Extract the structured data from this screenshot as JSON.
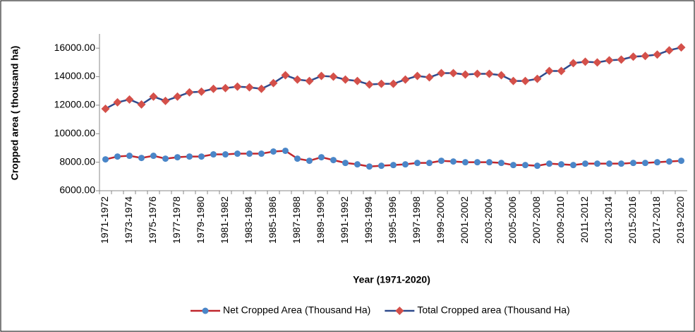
{
  "chart_data": {
    "type": "line",
    "xlabel": "Year (1971-2020)",
    "ylabel": "Cropped area ( thousand  ha)",
    "categories": [
      "1971-1972",
      null,
      "1973-1974",
      null,
      "1975-1976",
      null,
      "1977-1978",
      null,
      "1979-1980",
      null,
      "1981-1982",
      null,
      "1983-1984",
      null,
      "1985-1986",
      null,
      "1987-1988",
      null,
      "1989-1990",
      null,
      "1991-1992",
      null,
      "1993-1994",
      null,
      "1995-1996",
      null,
      "1997-1998",
      null,
      "1999-2000",
      null,
      "2001-2002",
      null,
      "2003-2004",
      null,
      "2005-2006",
      null,
      "2007-2008",
      null,
      "2009-2010",
      null,
      "2011-2012",
      null,
      "2013-2014",
      null,
      "2015-2016",
      null,
      "2017-2018",
      null,
      "2019-2020"
    ],
    "series": [
      {
        "name": "Net Cropped Area (Thousand Ha)",
        "color": "#c0272d",
        "marker_color": "#4a86c8",
        "marker": "circle",
        "values": [
          8200,
          8400,
          8450,
          8300,
          8450,
          8250,
          8350,
          8400,
          8400,
          8550,
          8550,
          8600,
          8600,
          8600,
          8750,
          8800,
          8250,
          8100,
          8350,
          8150,
          7950,
          7850,
          7700,
          7750,
          7800,
          7850,
          7950,
          7950,
          8100,
          8050,
          8000,
          8000,
          8000,
          7950,
          7800,
          7800,
          7750,
          7900,
          7850,
          7800,
          7900,
          7900,
          7900,
          7900,
          7950,
          7950,
          8000,
          8050,
          8100
        ]
      },
      {
        "name": "Total Cropped area (Thousand Ha)",
        "color": "#2e4a8c",
        "marker_color": "#d4504a",
        "marker": "diamond",
        "values": [
          11750,
          12200,
          12400,
          12050,
          12600,
          12300,
          12600,
          12900,
          12950,
          13150,
          13200,
          13300,
          13250,
          13150,
          13550,
          14100,
          13800,
          13700,
          14050,
          14000,
          13800,
          13700,
          13450,
          13500,
          13500,
          13800,
          14050,
          13950,
          14250,
          14250,
          14150,
          14200,
          14200,
          14100,
          13700,
          13700,
          13850,
          14400,
          14400,
          14950,
          15050,
          15000,
          15150,
          15200,
          15400,
          15450,
          15550,
          15850,
          16050
        ]
      }
    ],
    "ylim": [
      6000,
      17000
    ],
    "yticks": [
      {
        "value": 6000,
        "label": "6000.00"
      },
      {
        "value": 8000,
        "label": "8000.00"
      },
      {
        "value": 10000,
        "label": "10000.00"
      },
      {
        "value": 12000,
        "label": "12000.00"
      },
      {
        "value": 14000,
        "label": "14000.00"
      },
      {
        "value": 16000,
        "label": "16000.00"
      }
    ],
    "grid": false,
    "legend": "bottom"
  }
}
